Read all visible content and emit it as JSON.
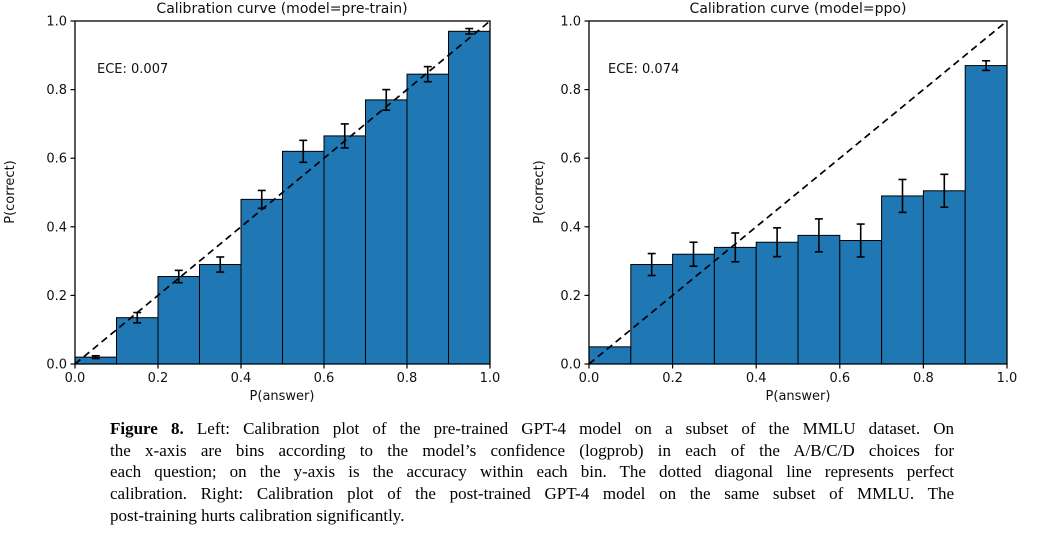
{
  "figure": {
    "caption": {
      "label": "Figure 8.",
      "lines": [
        " Left: Calibration plot of the pre-trained GPT-4 model on a subset of the MMLU dataset. On",
        "the x-axis are bins according to the model’s confidence (logprob) in each of the A/B/C/D choices for",
        "each question; on the y-axis is the accuracy within each bin. The dotted diagonal line represents perfect",
        "calibration. Right: Calibration plot of the post-trained GPT-4 model on the same subset of MMLU. The",
        "post-training hurts calibration significantly."
      ]
    }
  },
  "colors": {
    "bar_fill": "#1f77b4",
    "bar_edge": "#000000",
    "diagonal": "#000000",
    "axis": "#000000",
    "text": "#111111",
    "background": "#ffffff"
  },
  "chart_data": [
    {
      "type": "bar",
      "title": "Calibration curve (model=pre-train)",
      "annotation": "ECE: 0.007",
      "xlabel": "P(answer)",
      "ylabel": "P(correct)",
      "xlim": [
        0.0,
        1.0
      ],
      "ylim": [
        0.0,
        1.0
      ],
      "grid": false,
      "legend": null,
      "xticks": [
        0.0,
        0.2,
        0.4,
        0.6,
        0.8,
        1.0
      ],
      "yticks": [
        0.0,
        0.2,
        0.4,
        0.6,
        0.8,
        1.0
      ],
      "bin_edges": [
        0.0,
        0.1,
        0.2,
        0.3,
        0.4,
        0.5,
        0.6,
        0.7,
        0.8,
        0.9,
        1.0
      ],
      "values": [
        0.02,
        0.135,
        0.255,
        0.29,
        0.48,
        0.62,
        0.665,
        0.77,
        0.845,
        0.97
      ],
      "errors": [
        0.004,
        0.015,
        0.018,
        0.022,
        0.026,
        0.032,
        0.035,
        0.03,
        0.022,
        0.008
      ],
      "diagonal": "perfect-calibration"
    },
    {
      "type": "bar",
      "title": "Calibration curve (model=ppo)",
      "annotation": "ECE: 0.074",
      "xlabel": "P(answer)",
      "ylabel": "P(correct)",
      "xlim": [
        0.0,
        1.0
      ],
      "ylim": [
        0.0,
        1.0
      ],
      "grid": false,
      "legend": null,
      "xticks": [
        0.0,
        0.2,
        0.4,
        0.6,
        0.8,
        1.0
      ],
      "yticks": [
        0.0,
        0.2,
        0.4,
        0.6,
        0.8,
        1.0
      ],
      "bin_edges": [
        0.0,
        0.1,
        0.2,
        0.3,
        0.4,
        0.5,
        0.6,
        0.7,
        0.8,
        0.9,
        1.0
      ],
      "values": [
        0.05,
        0.29,
        0.32,
        0.34,
        0.355,
        0.375,
        0.36,
        0.49,
        0.505,
        0.87
      ],
      "errors": [
        0,
        0.032,
        0.035,
        0.042,
        0.042,
        0.048,
        0.048,
        0.048,
        0.048,
        0.014
      ],
      "diagonal": "perfect-calibration"
    }
  ]
}
